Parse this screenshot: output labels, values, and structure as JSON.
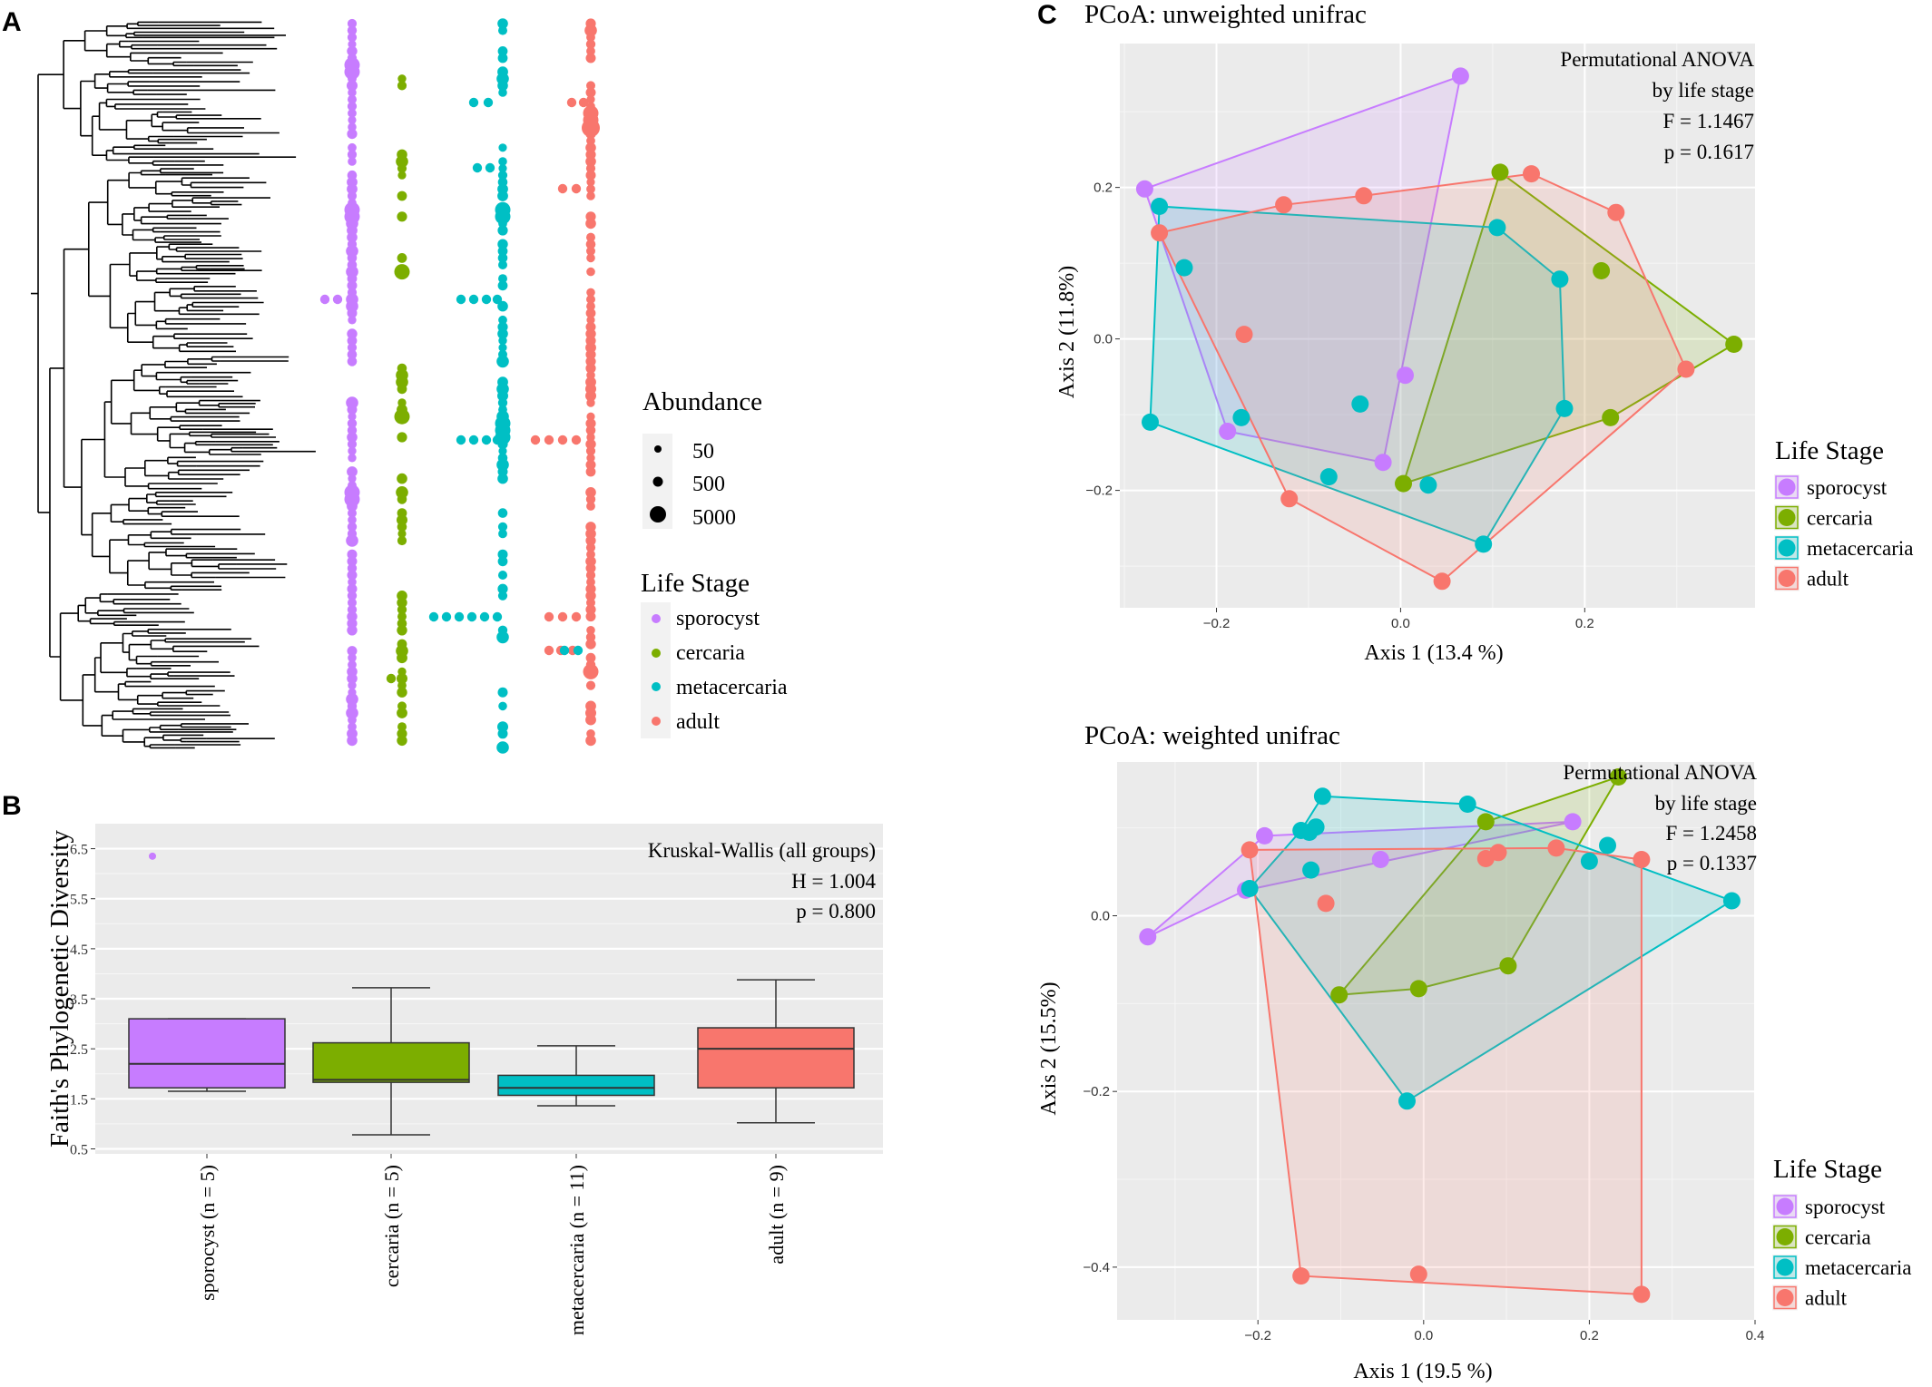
{
  "panels": {
    "a_label": "A",
    "b_label": "B",
    "c_label": "C"
  },
  "colors": {
    "sporocyst": "#C77CFF",
    "cercaria": "#7CAE00",
    "metacercaria": "#00BFC4",
    "adult": "#F8766D",
    "panel_bg": "#EBEBEB",
    "grid": "#FFFFFF"
  },
  "chart_data": [
    {
      "id": "phylo",
      "type": "scatter",
      "title": "",
      "legend_abundance_title": "Abundance",
      "abundance_levels": [
        "50",
        "500",
        "5000"
      ],
      "legend_stage_title": "Life Stage",
      "stages": [
        "sporocyst",
        "cercaria",
        "metacercaria",
        "adult"
      ]
    },
    {
      "id": "faith",
      "type": "box",
      "ylabel": "Faith's Phylogenetic Diversity",
      "ylim": [
        0.4,
        7.0
      ],
      "yticks": [
        "0.5",
        "1.5",
        "2.5",
        "3.5",
        "4.5",
        "5.5",
        "6.5"
      ],
      "categories": [
        "sporocyst (n = 5)",
        "cercaria (n = 5)",
        "metacercaria (n = 11)",
        "adult (n = 9)"
      ],
      "boxes": [
        {
          "stage": "sporocyst",
          "min": 1.65,
          "q1": 1.72,
          "median": 2.2,
          "q3": 3.1,
          "max": 3.1,
          "outliers": [
            6.35
          ]
        },
        {
          "stage": "cercaria",
          "min": 0.78,
          "q1": 1.83,
          "median": 1.88,
          "q3": 2.62,
          "max": 3.72,
          "outliers": []
        },
        {
          "stage": "metacercaria",
          "min": 1.36,
          "q1": 1.57,
          "median": 1.72,
          "q3": 1.97,
          "max": 2.56,
          "outliers": []
        },
        {
          "stage": "adult",
          "min": 1.02,
          "q1": 1.72,
          "median": 2.5,
          "q3": 2.92,
          "max": 3.88,
          "outliers": []
        }
      ],
      "annotation": [
        "Kruskal-Wallis (all groups)",
        "H = 1.004",
        "p = 0.800"
      ]
    },
    {
      "id": "pcoa_unweighted",
      "type": "scatter",
      "title": "PCoA: unweighted unifrac",
      "xlabel": "Axis 1 (13.4 %)",
      "ylabel": "Axis 2 (11.8%)",
      "xlim": [
        -0.305,
        0.385
      ],
      "ylim": [
        -0.355,
        0.39
      ],
      "xticks": [
        -0.2,
        0.0,
        0.2
      ],
      "yticks": [
        -0.2,
        0.0,
        0.2
      ],
      "xtick_labels": [
        "−0.2",
        "0.0",
        "0.2"
      ],
      "ytick_labels": [
        "−0.2",
        "0.0",
        "0.2"
      ],
      "annotation": [
        "Permutational ANOVA",
        "by life stage",
        "F = 1.1467",
        "p = 0.1617"
      ],
      "legend_title": "Life Stage",
      "legend": [
        "sporocyst",
        "cercaria",
        "metacercaria",
        "adult"
      ],
      "series": [
        {
          "name": "sporocyst",
          "points": [
            [
              -0.278,
              0.198
            ],
            [
              0.065,
              0.347
            ],
            [
              0.005,
              -0.048
            ],
            [
              -0.019,
              -0.163
            ],
            [
              -0.188,
              -0.122
            ]
          ],
          "hull": [
            [
              -0.278,
              0.198
            ],
            [
              0.065,
              0.347
            ],
            [
              -0.019,
              -0.163
            ],
            [
              -0.188,
              -0.122
            ]
          ]
        },
        {
          "name": "cercaria",
          "points": [
            [
              0.108,
              0.22
            ],
            [
              0.218,
              0.09
            ],
            [
              0.362,
              -0.007
            ],
            [
              0.228,
              -0.104
            ],
            [
              0.003,
              -0.191
            ]
          ],
          "hull": [
            [
              0.108,
              0.22
            ],
            [
              0.362,
              -0.007
            ],
            [
              0.228,
              -0.104
            ],
            [
              0.003,
              -0.191
            ]
          ]
        },
        {
          "name": "metacercaria",
          "points": [
            [
              -0.262,
              0.175
            ],
            [
              0.105,
              0.147
            ],
            [
              0.173,
              0.079
            ],
            [
              -0.235,
              0.094
            ],
            [
              -0.173,
              -0.104
            ],
            [
              -0.044,
              -0.086
            ],
            [
              0.178,
              -0.092
            ],
            [
              -0.272,
              -0.11
            ],
            [
              -0.078,
              -0.182
            ],
            [
              0.03,
              -0.193
            ],
            [
              0.09,
              -0.271
            ]
          ],
          "hull": [
            [
              -0.262,
              0.175
            ],
            [
              0.105,
              0.147
            ],
            [
              0.173,
              0.079
            ],
            [
              0.178,
              -0.092
            ],
            [
              0.09,
              -0.271
            ],
            [
              -0.272,
              -0.11
            ]
          ]
        },
        {
          "name": "adult",
          "points": [
            [
              0.142,
              0.218
            ],
            [
              -0.127,
              0.177
            ],
            [
              -0.04,
              0.189
            ],
            [
              0.234,
              0.167
            ],
            [
              -0.262,
              0.14
            ],
            [
              -0.17,
              0.006
            ],
            [
              0.31,
              -0.04
            ],
            [
              -0.121,
              -0.211
            ],
            [
              0.045,
              -0.32
            ]
          ],
          "hull": [
            [
              0.142,
              0.218
            ],
            [
              0.234,
              0.167
            ],
            [
              0.31,
              -0.04
            ],
            [
              0.045,
              -0.32
            ],
            [
              -0.121,
              -0.211
            ],
            [
              -0.262,
              0.14
            ],
            [
              -0.127,
              0.177
            ],
            [
              -0.04,
              0.189
            ]
          ]
        }
      ]
    },
    {
      "id": "pcoa_weighted",
      "type": "scatter",
      "title": "PCoA: weighted unifrac",
      "xlabel": "Axis 1 (19.5 %)",
      "ylabel": "Axis 2 (15.5%)",
      "xlim": [
        -0.37,
        0.4
      ],
      "ylim": [
        -0.46,
        0.175
      ],
      "xticks": [
        -0.2,
        0.0,
        0.2,
        0.4
      ],
      "yticks": [
        -0.4,
        -0.2,
        0.0
      ],
      "xtick_labels": [
        "−0.2",
        "0.0",
        "0.2",
        "0.4"
      ],
      "ytick_labels": [
        "−0.4",
        "−0.2",
        "0.0"
      ],
      "annotation": [
        "Permutational ANOVA",
        "by life stage",
        "F = 1.2458",
        "p = 0.1337"
      ],
      "legend_title": "Life Stage",
      "legend": [
        "sporocyst",
        "cercaria",
        "metacercaria",
        "adult"
      ],
      "series": [
        {
          "name": "sporocyst",
          "points": [
            [
              -0.333,
              -0.024
            ],
            [
              -0.192,
              0.091
            ],
            [
              0.18,
              0.107
            ],
            [
              -0.215,
              0.029
            ],
            [
              -0.052,
              0.064
            ]
          ],
          "hull": [
            [
              -0.333,
              -0.024
            ],
            [
              -0.192,
              0.091
            ],
            [
              0.18,
              0.107
            ],
            [
              -0.215,
              0.029
            ]
          ]
        },
        {
          "name": "cercaria",
          "points": [
            [
              0.235,
              0.158
            ],
            [
              0.075,
              0.107
            ],
            [
              0.102,
              -0.057
            ],
            [
              -0.006,
              -0.083
            ],
            [
              -0.102,
              -0.09
            ]
          ],
          "hull": [
            [
              0.235,
              0.158
            ],
            [
              0.102,
              -0.057
            ],
            [
              -0.006,
              -0.083
            ],
            [
              -0.102,
              -0.09
            ],
            [
              0.075,
              0.107
            ]
          ]
        },
        {
          "name": "metacercaria",
          "points": [
            [
              -0.122,
              0.136
            ],
            [
              0.053,
              0.127
            ],
            [
              0.222,
              0.08
            ],
            [
              0.2,
              0.062
            ],
            [
              0.372,
              0.017
            ],
            [
              -0.148,
              0.097
            ],
            [
              -0.138,
              0.095
            ],
            [
              -0.13,
              0.101
            ],
            [
              -0.136,
              0.052
            ],
            [
              -0.21,
              0.031
            ],
            [
              -0.02,
              -0.211
            ]
          ],
          "hull": [
            [
              -0.122,
              0.136
            ],
            [
              0.053,
              0.127
            ],
            [
              0.372,
              0.017
            ],
            [
              -0.02,
              -0.211
            ],
            [
              -0.21,
              0.031
            ],
            [
              -0.148,
              0.097
            ]
          ]
        },
        {
          "name": "adult",
          "points": [
            [
              -0.21,
              0.075
            ],
            [
              0.16,
              0.077
            ],
            [
              0.09,
              0.072
            ],
            [
              0.075,
              0.065
            ],
            [
              0.263,
              0.064
            ],
            [
              -0.118,
              0.014
            ],
            [
              -0.148,
              -0.41
            ],
            [
              -0.006,
              -0.408
            ],
            [
              0.263,
              -0.431
            ]
          ],
          "hull": [
            [
              -0.21,
              0.075
            ],
            [
              0.16,
              0.077
            ],
            [
              0.263,
              0.064
            ],
            [
              0.263,
              -0.431
            ],
            [
              -0.148,
              -0.41
            ]
          ]
        }
      ]
    }
  ]
}
